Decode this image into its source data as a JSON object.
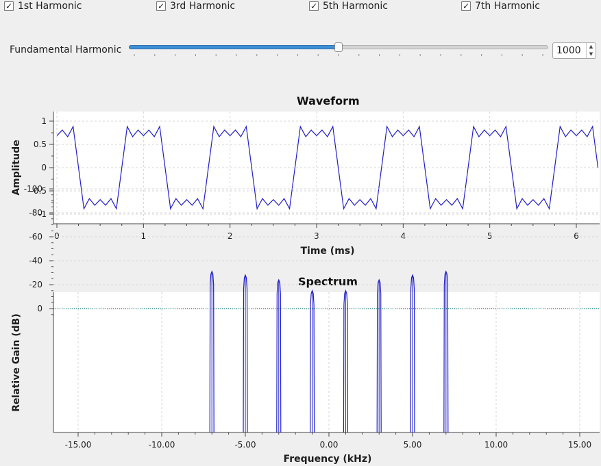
{
  "checkboxes": [
    {
      "label": "1st Harmonic",
      "checked": true
    },
    {
      "label": "3rd Harmonic",
      "checked": true
    },
    {
      "label": "5th Harmonic",
      "checked": true
    },
    {
      "label": "7th Harmonic",
      "checked": true
    }
  ],
  "fundamental": {
    "label": "Fundamental Harmonic",
    "value": "1000",
    "slider_fraction": 0.5
  },
  "colors": {
    "trace": "#1f1fc8",
    "zero_line": "#11807a",
    "accent": "#3d8fd6"
  },
  "waveform": {
    "title": "Waveform",
    "xlabel": "Time (ms)",
    "ylabel": "Amplitude",
    "x_ticks": [
      "0",
      "1",
      "2",
      "3",
      "4",
      "5",
      "6"
    ],
    "y_ticks": [
      "1",
      "0.5",
      "0",
      "-0.5",
      "-1"
    ]
  },
  "spectrum": {
    "title": "Spectrum",
    "xlabel": "Frequency (kHz)",
    "ylabel": "Relative Gain (dB)",
    "x_ticks": [
      "-15.00",
      "-10.00",
      "-5.00",
      "0.00",
      "5.00",
      "10.00",
      "15.00"
    ],
    "y_ticks": [
      "0",
      "-20",
      "-40",
      "-60",
      "-80",
      "-100"
    ]
  },
  "chart_data": [
    {
      "type": "line",
      "title": "Waveform",
      "xlabel": "Time (ms)",
      "ylabel": "Amplitude",
      "xlim": [
        0,
        6.25
      ],
      "ylim": [
        -1.1,
        1.1
      ],
      "grid": true,
      "signal": {
        "fundamental_khz": 1,
        "harmonics": [
          1,
          3,
          5,
          7
        ],
        "sample_step_ms": 0.0625
      }
    },
    {
      "type": "bar",
      "title": "Spectrum",
      "xlabel": "Frequency (kHz)",
      "ylabel": "Relative Gain (dB)",
      "xlim": [
        -16,
        16
      ],
      "ylim": [
        -102,
        10
      ],
      "grid": true,
      "reference_line_db": 0,
      "x": [
        -7,
        -5,
        -3,
        -1,
        1,
        3,
        5,
        7
      ],
      "values": [
        -31,
        -28,
        -24,
        -15,
        -15,
        -24,
        -28,
        -31
      ]
    }
  ]
}
